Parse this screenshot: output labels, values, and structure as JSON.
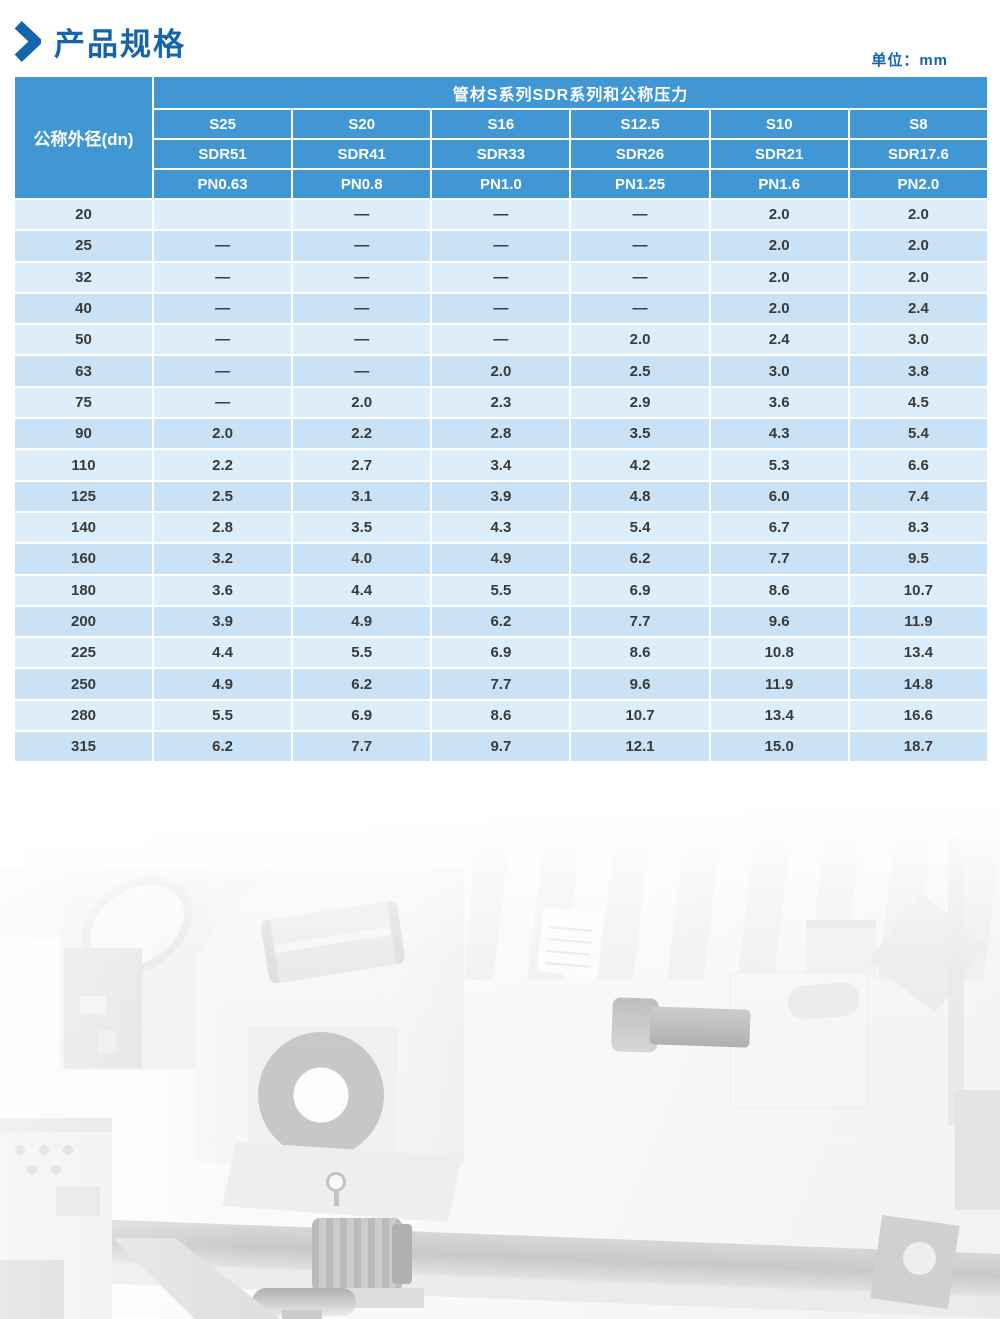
{
  "page": {
    "title": "产品规格",
    "unit_label": "单位：mm"
  },
  "colors": {
    "accent_blue": "#1565ad",
    "header_blue": "#4197d4",
    "row_light": "#ddedf9",
    "row_dark": "#c9e2f5",
    "cell_text": "#3a3a3a",
    "header_text": "#ffffff"
  },
  "table": {
    "row_header": "公称外径(dn)",
    "col_group_header": "管材S系列SDR系列和公称压力",
    "series_labels": [
      "S25",
      "S20",
      "S16",
      "S12.5",
      "S10",
      "S8"
    ],
    "sdr_labels": [
      "SDR51",
      "SDR41",
      "SDR33",
      "SDR26",
      "SDR21",
      "SDR17.6"
    ],
    "pn_labels": [
      "PN0.63",
      "PN0.8",
      "PN1.0",
      "PN1.25",
      "PN1.6",
      "PN2.0"
    ],
    "rows": [
      {
        "dn": "20",
        "values": [
          "",
          "—",
          "—",
          "—",
          "2.0",
          "2.0"
        ]
      },
      {
        "dn": "25",
        "values": [
          "—",
          "—",
          "—",
          "—",
          "2.0",
          "2.0"
        ]
      },
      {
        "dn": "32",
        "values": [
          "—",
          "—",
          "—",
          "—",
          "2.0",
          "2.0"
        ]
      },
      {
        "dn": "40",
        "values": [
          "—",
          "—",
          "—",
          "—",
          "2.0",
          "2.4"
        ]
      },
      {
        "dn": "50",
        "values": [
          "—",
          "—",
          "—",
          "2.0",
          "2.4",
          "3.0"
        ]
      },
      {
        "dn": "63",
        "values": [
          "—",
          "—",
          "2.0",
          "2.5",
          "3.0",
          "3.8"
        ]
      },
      {
        "dn": "75",
        "values": [
          "—",
          "2.0",
          "2.3",
          "2.9",
          "3.6",
          "4.5"
        ]
      },
      {
        "dn": "90",
        "values": [
          "2.0",
          "2.2",
          "2.8",
          "3.5",
          "4.3",
          "5.4"
        ]
      },
      {
        "dn": "110",
        "values": [
          "2.2",
          "2.7",
          "3.4",
          "4.2",
          "5.3",
          "6.6"
        ]
      },
      {
        "dn": "125",
        "values": [
          "2.5",
          "3.1",
          "3.9",
          "4.8",
          "6.0",
          "7.4"
        ]
      },
      {
        "dn": "140",
        "values": [
          "2.8",
          "3.5",
          "4.3",
          "5.4",
          "6.7",
          "8.3"
        ]
      },
      {
        "dn": "160",
        "values": [
          "3.2",
          "4.0",
          "4.9",
          "6.2",
          "7.7",
          "9.5"
        ]
      },
      {
        "dn": "180",
        "values": [
          "3.6",
          "4.4",
          "5.5",
          "6.9",
          "8.6",
          "10.7"
        ]
      },
      {
        "dn": "200",
        "values": [
          "3.9",
          "4.9",
          "6.2",
          "7.7",
          "9.6",
          "11.9"
        ]
      },
      {
        "dn": "225",
        "values": [
          "4.4",
          "5.5",
          "6.9",
          "8.6",
          "10.8",
          "13.4"
        ]
      },
      {
        "dn": "250",
        "values": [
          "4.9",
          "6.2",
          "7.7",
          "9.6",
          "11.9",
          "14.8"
        ]
      },
      {
        "dn": "280",
        "values": [
          "5.5",
          "6.9",
          "8.6",
          "10.7",
          "13.4",
          "16.6"
        ]
      },
      {
        "dn": "315",
        "values": [
          "6.2",
          "7.7",
          "9.7",
          "12.1",
          "15.0",
          "18.7"
        ]
      }
    ]
  }
}
